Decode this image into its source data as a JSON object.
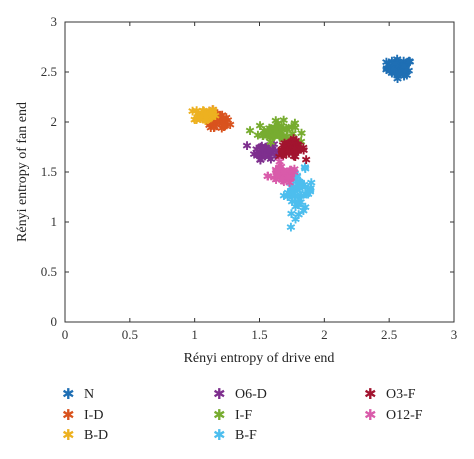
{
  "chart_data": {
    "type": "scatter",
    "title": "",
    "xlabel": "Rényi entropy of drive end",
    "ylabel": "Rényi entropy of fan end",
    "xlim": [
      0,
      3
    ],
    "ylim": [
      0,
      3
    ],
    "xticks": [
      "0",
      "0.5",
      "1",
      "1.5",
      "2",
      "2.5",
      "3"
    ],
    "yticks": [
      "0",
      "0.5",
      "1",
      "1.5",
      "2",
      "2.5",
      "3"
    ],
    "grid": false,
    "legend_position": "bottom",
    "marker": "*",
    "series": [
      {
        "name": "N",
        "color": "#1f6fb4",
        "center": [
          2.58,
          2.54
        ],
        "spread": [
          0.07,
          0.06
        ],
        "count": 60
      },
      {
        "name": "I-D",
        "color": "#d9531e",
        "center": [
          1.17,
          2.0
        ],
        "spread": [
          0.07,
          0.07
        ],
        "count": 45
      },
      {
        "name": "B-D",
        "color": "#edb120",
        "center": [
          1.08,
          2.07
        ],
        "spread": [
          0.06,
          0.05
        ],
        "count": 40
      },
      {
        "name": "O6-D",
        "color": "#7e2f8e",
        "center": [
          1.55,
          1.71
        ],
        "spread": [
          0.06,
          0.06
        ],
        "count": 45
      },
      {
        "name": "I-F",
        "color": "#77ac30",
        "center": [
          1.63,
          1.9
        ],
        "spread": [
          0.1,
          0.07
        ],
        "count": 55
      },
      {
        "name": "B-F",
        "color": "#4dbeee",
        "center": [
          1.8,
          1.3
        ],
        "spread": [
          0.08,
          0.15
        ],
        "count": 55
      },
      {
        "name": "O3-F",
        "color": "#a2142f",
        "center": [
          1.75,
          1.73
        ],
        "spread": [
          0.07,
          0.06
        ],
        "count": 50
      },
      {
        "name": "O12-F",
        "color": "#d95baa",
        "center": [
          1.68,
          1.46
        ],
        "spread": [
          0.08,
          0.06
        ],
        "count": 50
      }
    ]
  }
}
